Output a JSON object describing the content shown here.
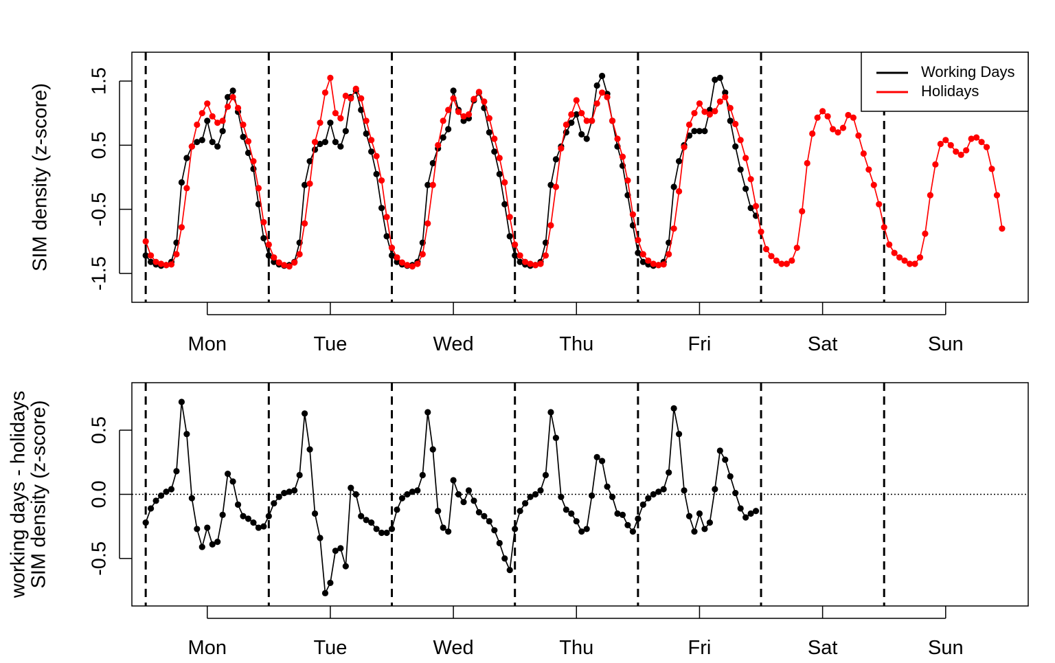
{
  "chart_data": [
    {
      "type": "line",
      "title": "",
      "ylabel": "SIM density (z-score)",
      "xlabel": "",
      "day_labels": [
        "Mon",
        "Tue",
        "Wed",
        "Thu",
        "Fri",
        "Sat",
        "Sun"
      ],
      "x_unit": "hour of week",
      "xlim": [
        -2.7,
        172.1
      ],
      "ylim": [
        -1.95,
        1.95
      ],
      "yticks": [
        -1.5,
        -0.5,
        0.5,
        1.5
      ],
      "ytick_labels": [
        "-1.5",
        "-0.5",
        "0.5",
        "1.5"
      ],
      "day_boundaries": [
        0,
        24,
        48,
        72,
        96,
        120,
        144
      ],
      "legend": {
        "position": "top-right",
        "entries": [
          "Working Days",
          "Holidays"
        ]
      },
      "colors": {
        "Working Days": "#000000",
        "Holidays": "#ff0000"
      },
      "series": [
        {
          "name": "Working Days",
          "x_start": 0,
          "x_step": 1,
          "values": [
            -1.22,
            -1.32,
            -1.36,
            -1.38,
            -1.37,
            -1.32,
            -1.02,
            -0.08,
            0.3,
            0.48,
            0.55,
            0.58,
            0.88,
            0.55,
            0.48,
            0.72,
            1.25,
            1.35,
            1.02,
            0.63,
            0.38,
            0.13,
            -0.42,
            -0.95,
            -1.22,
            -1.32,
            -1.36,
            -1.38,
            -1.37,
            -1.32,
            -1.02,
            -0.12,
            0.25,
            0.43,
            0.52,
            0.55,
            0.85,
            0.55,
            0.48,
            0.72,
            1.25,
            1.35,
            1.05,
            0.68,
            0.4,
            0.05,
            -0.48,
            -0.92,
            -1.22,
            -1.32,
            -1.36,
            -1.38,
            -1.37,
            -1.32,
            -1.02,
            -0.12,
            0.22,
            0.45,
            0.62,
            0.75,
            1.35,
            1.05,
            0.88,
            0.92,
            1.2,
            1.32,
            1.08,
            0.7,
            0.4,
            0.05,
            -0.42,
            -0.92,
            -1.22,
            -1.32,
            -1.36,
            -1.38,
            -1.37,
            -1.32,
            -1.02,
            -0.12,
            0.28,
            0.48,
            0.7,
            0.85,
            0.98,
            0.67,
            0.6,
            0.88,
            1.43,
            1.58,
            1.3,
            0.88,
            0.48,
            0.18,
            -0.28,
            -0.75,
            -1.18,
            -1.32,
            -1.36,
            -1.38,
            -1.37,
            -1.32,
            -1.02,
            -0.15,
            0.25,
            0.5,
            0.65,
            0.72,
            0.72,
            0.72,
            1.05,
            1.52,
            1.55,
            1.32,
            0.88,
            0.48,
            0.12,
            -0.18,
            -0.48,
            -0.6
          ]
        },
        {
          "name": "Holidays",
          "x_start": 0,
          "x_step": 1,
          "values": [
            -1.0,
            -1.22,
            -1.32,
            -1.35,
            -1.37,
            -1.36,
            -1.2,
            -0.78,
            -0.17,
            0.48,
            0.82,
            1.0,
            1.15,
            0.95,
            0.85,
            0.88,
            1.1,
            1.25,
            1.08,
            0.82,
            0.56,
            0.25,
            -0.17,
            -0.7,
            -1.05,
            -1.25,
            -1.33,
            -1.37,
            -1.39,
            -1.33,
            -1.2,
            -0.72,
            -0.1,
            0.55,
            0.85,
            1.32,
            1.55,
            1.0,
            0.92,
            1.27,
            1.23,
            1.38,
            1.23,
            0.88,
            0.58,
            0.33,
            -0.05,
            -0.62,
            -1.1,
            -1.25,
            -1.33,
            -1.37,
            -1.39,
            -1.35,
            -1.2,
            -0.72,
            -0.12,
            0.5,
            0.88,
            1.05,
            1.23,
            1.02,
            0.95,
            0.98,
            1.22,
            1.33,
            1.18,
            0.92,
            0.6,
            0.3,
            -0.08,
            -0.62,
            -1.05,
            -1.22,
            -1.32,
            -1.35,
            -1.37,
            -1.35,
            -1.22,
            -0.75,
            -0.15,
            0.45,
            0.82,
            0.98,
            1.2,
            1.0,
            0.88,
            0.88,
            1.15,
            1.32,
            1.25,
            0.88,
            0.6,
            0.32,
            -0.05,
            -0.58,
            -0.98,
            -1.2,
            -1.3,
            -1.35,
            -1.37,
            -1.36,
            -1.2,
            -0.8,
            -0.22,
            0.47,
            0.82,
            1.0,
            1.15,
            1.02,
            0.98,
            1.03,
            1.18,
            1.25,
            1.08,
            0.83,
            0.58,
            0.3,
            -0.03,
            -0.45,
            -0.85,
            -1.12,
            -1.23,
            -1.3,
            -1.35,
            -1.35,
            -1.3,
            -1.1,
            -0.53,
            0.22,
            0.68,
            0.93,
            1.03,
            0.95,
            0.75,
            0.7,
            0.77,
            0.97,
            0.93,
            0.65,
            0.37,
            0.12,
            -0.12,
            -0.42,
            -0.78,
            -1.05,
            -1.18,
            -1.25,
            -1.3,
            -1.35,
            -1.35,
            -1.25,
            -0.88,
            -0.28,
            0.2,
            0.52,
            0.58,
            0.5,
            0.4,
            0.35,
            0.42,
            0.6,
            0.62,
            0.55,
            0.47,
            0.13,
            -0.28,
            -0.8
          ]
        }
      ]
    },
    {
      "type": "line",
      "title": "",
      "ylabel": "working days - holidays",
      "ylabel2": "SIM density (z-score)",
      "xlabel": "",
      "day_labels": [
        "Mon",
        "Tue",
        "Wed",
        "Thu",
        "Fri",
        "Sat",
        "Sun"
      ],
      "x_unit": "hour of week",
      "xlim": [
        -2.7,
        172.1
      ],
      "ylim": [
        -0.87,
        0.87
      ],
      "yticks": [
        -0.5,
        0.0,
        0.5
      ],
      "ytick_labels": [
        "-0.5",
        "0.0",
        "0.5"
      ],
      "reference_line": 0,
      "day_boundaries": [
        0,
        24,
        48,
        72,
        96,
        120,
        144
      ],
      "series": [
        {
          "name": "",
          "x_start": 0,
          "x_step": 1,
          "values": [
            -0.22,
            -0.11,
            -0.05,
            -0.01,
            0.02,
            0.04,
            0.18,
            0.72,
            0.47,
            -0.03,
            -0.27,
            -0.41,
            -0.26,
            -0.39,
            -0.37,
            -0.16,
            0.16,
            0.1,
            -0.08,
            -0.17,
            -0.19,
            -0.22,
            -0.26,
            -0.25,
            -0.17,
            -0.07,
            -0.02,
            0.01,
            0.02,
            0.03,
            0.15,
            0.63,
            0.35,
            -0.15,
            -0.34,
            -0.77,
            -0.69,
            -0.44,
            -0.42,
            -0.56,
            0.05,
            0.0,
            -0.17,
            -0.2,
            -0.22,
            -0.27,
            -0.3,
            -0.3,
            -0.27,
            -0.12,
            -0.03,
            0.0,
            0.02,
            0.03,
            0.15,
            0.64,
            0.35,
            -0.13,
            -0.26,
            -0.29,
            0.11,
            0.0,
            -0.06,
            0.03,
            -0.05,
            -0.14,
            -0.17,
            -0.21,
            -0.28,
            -0.38,
            -0.5,
            -0.59,
            -0.27,
            -0.13,
            -0.07,
            -0.02,
            0.0,
            0.03,
            0.15,
            0.64,
            0.44,
            -0.02,
            -0.12,
            -0.15,
            -0.21,
            -0.29,
            -0.27,
            -0.01,
            0.29,
            0.26,
            0.06,
            -0.02,
            -0.15,
            -0.16,
            -0.24,
            -0.29,
            -0.19,
            -0.08,
            -0.03,
            0.0,
            0.02,
            0.04,
            0.17,
            0.67,
            0.47,
            0.03,
            -0.17,
            -0.29,
            -0.15,
            -0.27,
            -0.22,
            0.04,
            0.34,
            0.27,
            0.14,
            0.01,
            -0.11,
            -0.18,
            -0.15,
            -0.13
          ]
        }
      ]
    }
  ]
}
